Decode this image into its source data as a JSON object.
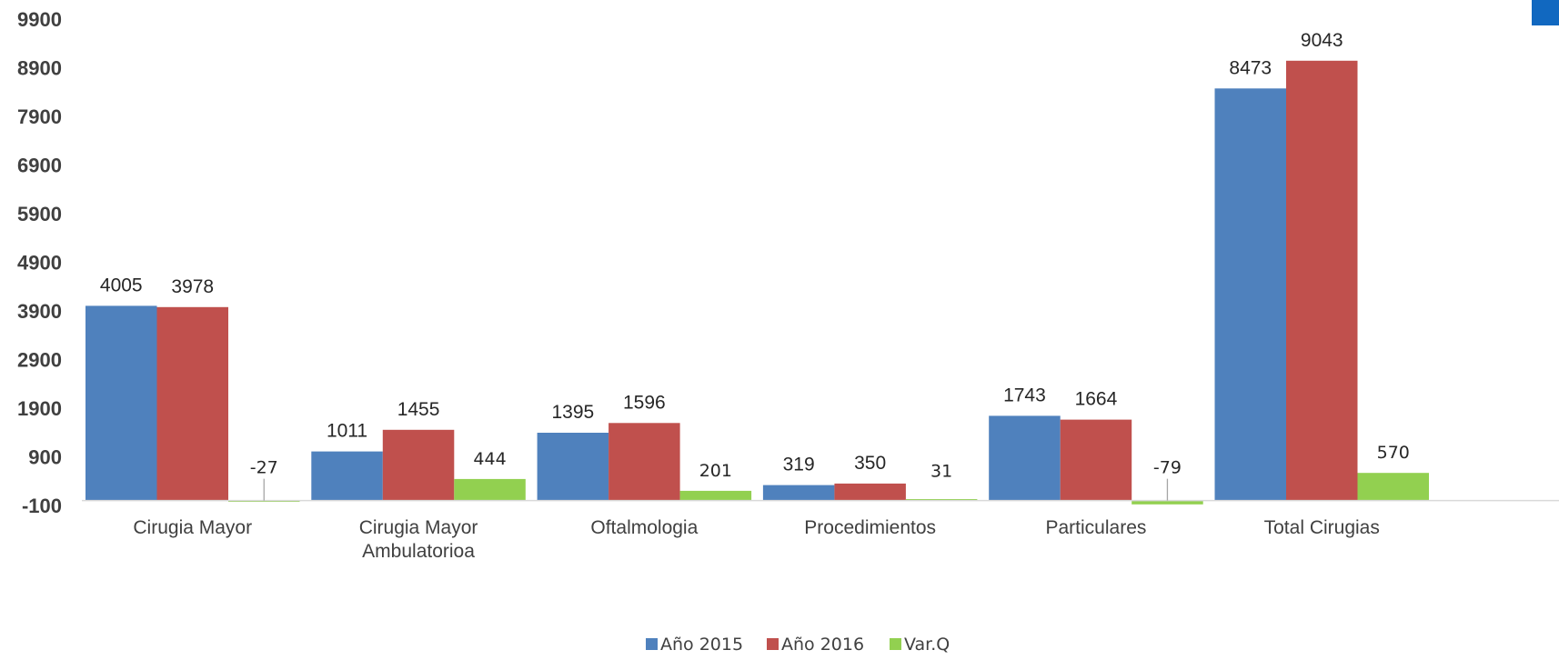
{
  "chart_data": {
    "type": "bar",
    "categories": [
      [
        "Cirugia Mayor"
      ],
      [
        "Cirugia Mayor",
        "Ambulatorioa"
      ],
      [
        "Oftalmologia"
      ],
      [
        "Procedimientos"
      ],
      [
        "Particulares"
      ],
      [
        "Total Cirugias"
      ]
    ],
    "series": [
      {
        "name": "Año 2015",
        "color": "#4f81bd",
        "values": [
          4005,
          1011,
          1395,
          319,
          1743,
          8473
        ]
      },
      {
        "name": "Año 2016",
        "color": "#c0504d",
        "values": [
          3978,
          1455,
          1596,
          350,
          1664,
          9043
        ]
      },
      {
        "name": "Var.Q",
        "color": "#92d050",
        "values": [
          -27,
          444,
          201,
          31,
          -79,
          570
        ]
      }
    ],
    "yticks": [
      -100,
      900,
      1900,
      2900,
      3900,
      4900,
      5900,
      6900,
      7900,
      8900,
      9900
    ],
    "ylim": [
      -100,
      9900
    ],
    "grid": false,
    "legend_position": "bottom",
    "title": "",
    "xlabel": "",
    "ylabel": ""
  },
  "decor": {
    "corner_color": "#1168c0"
  }
}
